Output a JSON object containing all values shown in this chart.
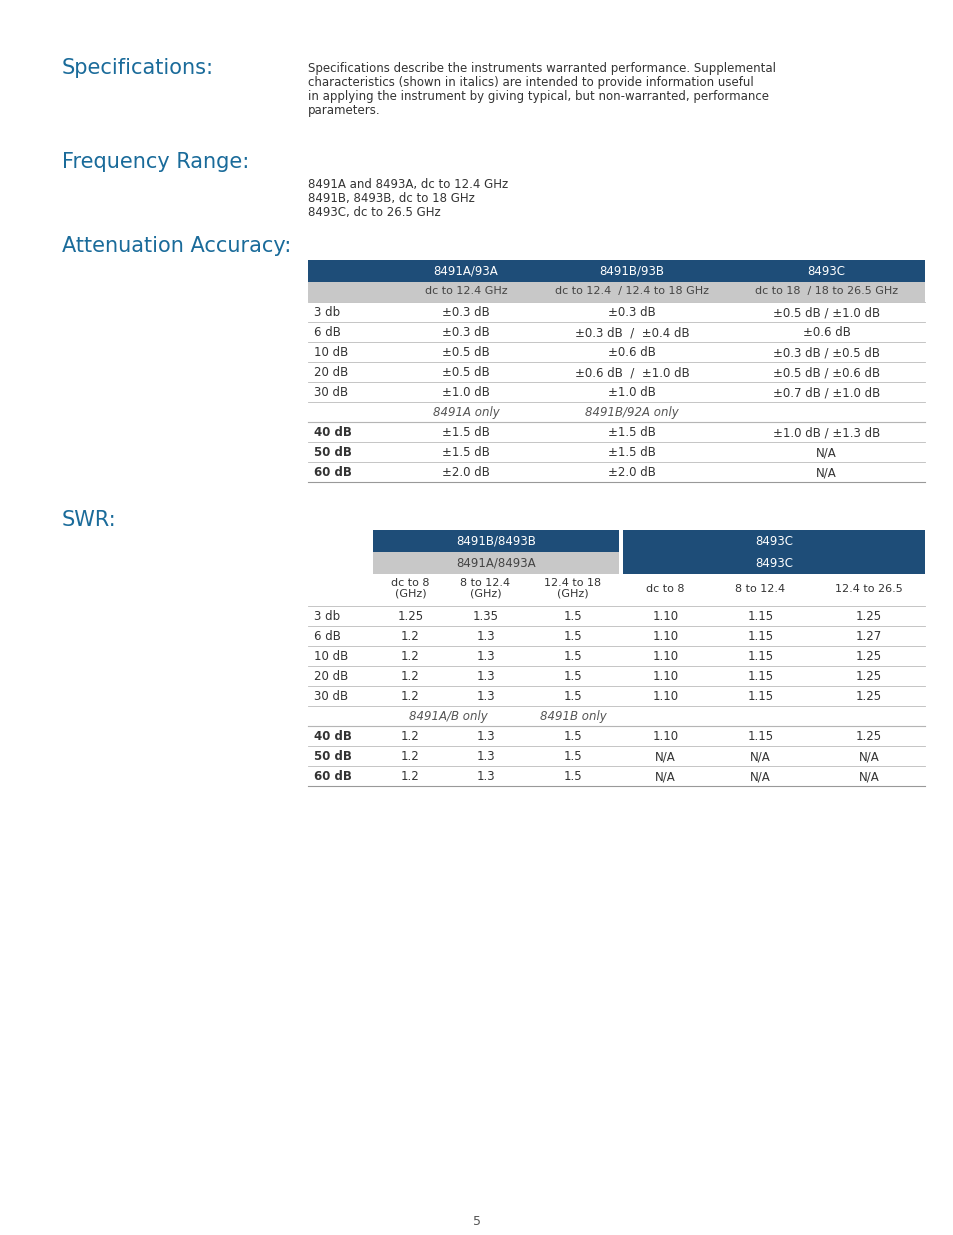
{
  "bg_color": "#ffffff",
  "heading_color": "#1a6b9a",
  "dark_blue": "#1e4d78",
  "light_gray": "#c8c8c8",
  "text_color": "#333333",
  "spec_title": "Specifications:",
  "spec_body_lines": [
    "Specifications describe the instruments warranted performance. Supplemental",
    "characteristics (shown in italics) are intended to provide information useful",
    "in applying the instrument by giving typical, but non-warranted, performance",
    "parameters."
  ],
  "freq_title": "Frequency Range:",
  "freq_lines": [
    "8491A and 8493A, dc to 12.4 GHz",
    "8491B, 8493B, dc to 18 GHz",
    "8493C, dc to 26.5 GHz"
  ],
  "atten_title": "Attenuation Accuracy:",
  "atten_header1": [
    "",
    "8491A/93A",
    "8491B/93B",
    "8493C"
  ],
  "atten_header2": [
    "",
    "dc to 12.4 GHz",
    "dc to 12.4  / 12.4 to 18 GHz",
    "dc to 18  / 18 to 26.5 GHz"
  ],
  "atten_rows": [
    [
      "3 db",
      "±0.3 dB",
      "±0.3 dB",
      "±0.5 dB / ±1.0 dB"
    ],
    [
      "6 dB",
      "±0.3 dB",
      "±0.3 dB  /  ±0.4 dB",
      "±0.6 dB"
    ],
    [
      "10 dB",
      "±0.5 dB",
      "±0.6 dB",
      "±0.3 dB / ±0.5 dB"
    ],
    [
      "20 dB",
      "±0.5 dB",
      "±0.6 dB  /  ±1.0 dB",
      "±0.5 dB / ±0.6 dB"
    ],
    [
      "30 dB",
      "±1.0 dB",
      "±1.0 dB",
      "±0.7 dB / ±1.0 dB"
    ]
  ],
  "atten_note_row": [
    "",
    "8491A only",
    "8491B/92A only",
    ""
  ],
  "atten_rows2": [
    [
      "40 dB",
      "±1.5 dB",
      "±1.5 dB",
      "±1.0 dB / ±1.3 dB"
    ],
    [
      "50 dB",
      "±1.5 dB",
      "±1.5 dB",
      "N/A"
    ],
    [
      "60 dB",
      "±2.0 dB",
      "±2.0 dB",
      "N/A"
    ]
  ],
  "swr_title": "SWR:",
  "swr_rows": [
    [
      "3 db",
      "1.25",
      "1.35",
      "1.5",
      "1.10",
      "1.15",
      "1.25"
    ],
    [
      "6 dB",
      "1.2",
      "1.3",
      "1.5",
      "1.10",
      "1.15",
      "1.27"
    ],
    [
      "10 dB",
      "1.2",
      "1.3",
      "1.5",
      "1.10",
      "1.15",
      "1.25"
    ],
    [
      "20 dB",
      "1.2",
      "1.3",
      "1.5",
      "1.10",
      "1.15",
      "1.25"
    ],
    [
      "30 dB",
      "1.2",
      "1.3",
      "1.5",
      "1.10",
      "1.15",
      "1.25"
    ]
  ],
  "swr_rows2": [
    [
      "40 dB",
      "1.2",
      "1.3",
      "1.5",
      "1.10",
      "1.15",
      "1.25"
    ],
    [
      "50 dB",
      "1.2",
      "1.3",
      "1.5",
      "N/A",
      "N/A",
      "N/A"
    ],
    [
      "60 dB",
      "1.2",
      "1.3",
      "1.5",
      "N/A",
      "N/A",
      "N/A"
    ]
  ],
  "page_number": "5"
}
